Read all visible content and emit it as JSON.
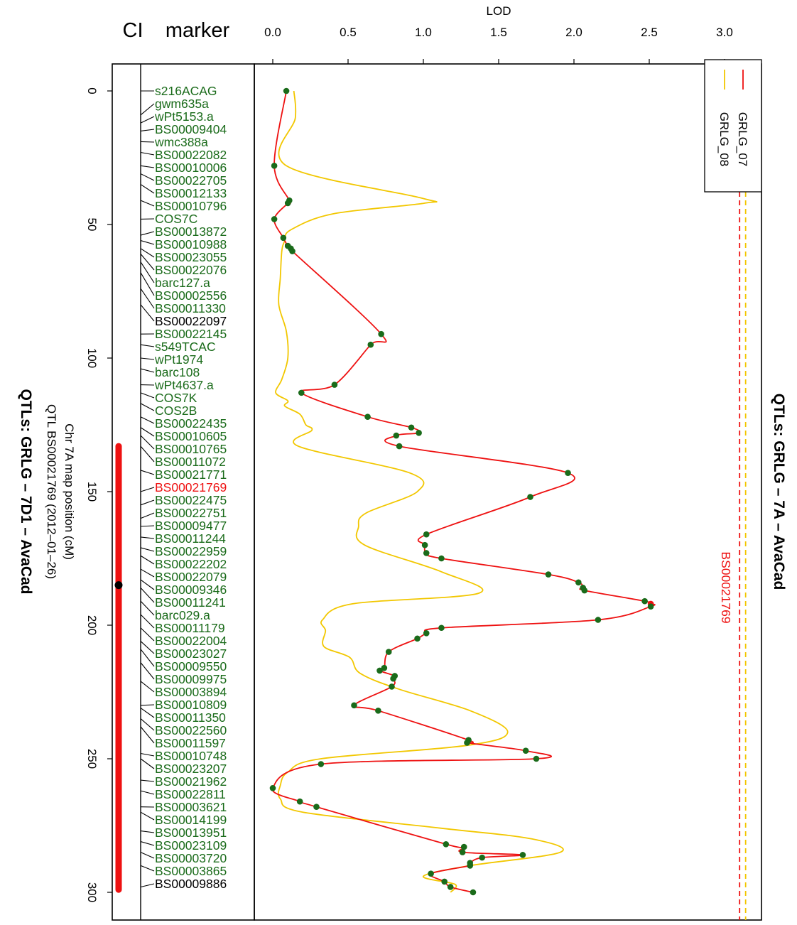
{
  "chart_data": {
    "type": "line",
    "title_right": "QTLs: GRLG – 7A – AvaCad",
    "title_left": "QTLs: GRLG – 7D1 – AvaCad",
    "subtitle_lines": [
      "Chr 7A map position (cM)",
      "QTL BS00021769 (2012–01–26)"
    ],
    "column_labels": {
      "ci": "CI",
      "marker": "marker"
    },
    "xlabel": "LOD",
    "xlim": [
      0,
      3.2
    ],
    "lod_ticks": [
      "0.0",
      "0.5",
      "1.0",
      "1.5",
      "2.0",
      "2.5",
      "3.0"
    ],
    "ylim": [
      0,
      300
    ],
    "pos_ticks": [
      "0",
      "50",
      "100",
      "150",
      "200",
      "250",
      "300"
    ],
    "ci": {
      "start": 133,
      "end": 299,
      "peak": 185
    },
    "peak_marker": "BS00021769",
    "threshold_color_red": "#ee1111",
    "threshold_color_yellow": "#f2c700",
    "thresholds": [
      {
        "series": "GRLG_07",
        "lod": 3.1,
        "color": "#ee1111"
      },
      {
        "series": "GRLG_08",
        "lod": 3.14,
        "color": "#f2c700"
      }
    ],
    "legend": [
      {
        "name": "GRLG_07",
        "color": "#ee1111"
      },
      {
        "name": "GRLG_08",
        "color": "#f2c700"
      }
    ],
    "markers": [
      {
        "name": "s216ACAG",
        "pos": 0,
        "color": "#1a6b1a"
      },
      {
        "name": "gwm635a",
        "pos": 9,
        "color": "#1a6b1a"
      },
      {
        "name": "wPt5153.a",
        "pos": 12,
        "color": "#1a6b1a"
      },
      {
        "name": "BS00009404",
        "pos": 15,
        "color": "#1a6b1a"
      },
      {
        "name": "wmc388a",
        "pos": 19,
        "color": "#1a6b1a"
      },
      {
        "name": "BS00022082",
        "pos": 23,
        "color": "#1a6b1a"
      },
      {
        "name": "BS00010006",
        "pos": 28,
        "color": "#1a6b1a"
      },
      {
        "name": "BS00022705",
        "pos": 31,
        "color": "#1a6b1a"
      },
      {
        "name": "BS00012133",
        "pos": 35,
        "color": "#1a6b1a"
      },
      {
        "name": "BS00010796",
        "pos": 41,
        "color": "#1a6b1a"
      },
      {
        "name": "COS7C",
        "pos": 48,
        "color": "#1a6b1a"
      },
      {
        "name": "BS00013872",
        "pos": 54,
        "color": "#1a6b1a"
      },
      {
        "name": "BS00010988",
        "pos": 56,
        "color": "#1a6b1a"
      },
      {
        "name": "BS00023055",
        "pos": 59,
        "color": "#1a6b1a"
      },
      {
        "name": "BS00022076",
        "pos": 61,
        "color": "#1a6b1a"
      },
      {
        "name": "barc127.a",
        "pos": 64,
        "color": "#1a6b1a"
      },
      {
        "name": "BS00002556",
        "pos": 68,
        "color": "#1a6b1a"
      },
      {
        "name": "BS00011330",
        "pos": 74,
        "color": "#1a6b1a"
      },
      {
        "name": "BS00022097",
        "pos": 80,
        "color": "#000000"
      },
      {
        "name": "BS00022145",
        "pos": 91,
        "color": "#1a6b1a"
      },
      {
        "name": "s549TCAC",
        "pos": 95,
        "color": "#1a6b1a"
      },
      {
        "name": "wPt1974",
        "pos": 100,
        "color": "#1a6b1a"
      },
      {
        "name": "barc108",
        "pos": 104,
        "color": "#1a6b1a"
      },
      {
        "name": "wPt4637.a",
        "pos": 110,
        "color": "#1a6b1a"
      },
      {
        "name": "COS7K",
        "pos": 113,
        "color": "#1a6b1a"
      },
      {
        "name": "COS2B",
        "pos": 117,
        "color": "#1a6b1a"
      },
      {
        "name": "BS00022435",
        "pos": 122,
        "color": "#1a6b1a"
      },
      {
        "name": "BS00010605",
        "pos": 126,
        "color": "#1a6b1a"
      },
      {
        "name": "BS00010765",
        "pos": 129,
        "color": "#1a6b1a"
      },
      {
        "name": "BS00011072",
        "pos": 133,
        "color": "#1a6b1a"
      },
      {
        "name": "BS00021771",
        "pos": 142,
        "color": "#1a6b1a"
      },
      {
        "name": "BS00021769",
        "pos": 150,
        "color": "#ee1111"
      },
      {
        "name": "BS00022475",
        "pos": 155,
        "color": "#1a6b1a"
      },
      {
        "name": "BS00022751",
        "pos": 160,
        "color": "#1a6b1a"
      },
      {
        "name": "BS00009477",
        "pos": 163,
        "color": "#1a6b1a"
      },
      {
        "name": "BS00011244",
        "pos": 167,
        "color": "#1a6b1a"
      },
      {
        "name": "BS00022959",
        "pos": 171,
        "color": "#1a6b1a"
      },
      {
        "name": "BS00022202",
        "pos": 174,
        "color": "#1a6b1a"
      },
      {
        "name": "BS00022079",
        "pos": 179,
        "color": "#1a6b1a"
      },
      {
        "name": "BS00009346",
        "pos": 183,
        "color": "#1a6b1a"
      },
      {
        "name": "BS00011241",
        "pos": 186,
        "color": "#1a6b1a"
      },
      {
        "name": "barc029.a",
        "pos": 191,
        "color": "#1a6b1a"
      },
      {
        "name": "BS00011179",
        "pos": 196,
        "color": "#1a6b1a"
      },
      {
        "name": "BS00022004",
        "pos": 201,
        "color": "#1a6b1a"
      },
      {
        "name": "BS00023027",
        "pos": 206,
        "color": "#1a6b1a"
      },
      {
        "name": "BS00009550",
        "pos": 209,
        "color": "#1a6b1a"
      },
      {
        "name": "BS00009975",
        "pos": 214,
        "color": "#1a6b1a"
      },
      {
        "name": "BS00003894",
        "pos": 221,
        "color": "#1a6b1a"
      },
      {
        "name": "BS00010809",
        "pos": 230,
        "color": "#1a6b1a"
      },
      {
        "name": "BS00011350",
        "pos": 231,
        "color": "#1a6b1a"
      },
      {
        "name": "BS00022560",
        "pos": 235,
        "color": "#1a6b1a"
      },
      {
        "name": "BS00011597",
        "pos": 238,
        "color": "#1a6b1a"
      },
      {
        "name": "BS00010748",
        "pos": 248,
        "color": "#1a6b1a"
      },
      {
        "name": "BS00023207",
        "pos": 250,
        "color": "#1a6b1a"
      },
      {
        "name": "BS00021962",
        "pos": 258,
        "color": "#1a6b1a"
      },
      {
        "name": "BS00022811",
        "pos": 262,
        "color": "#1a6b1a"
      },
      {
        "name": "BS00003621",
        "pos": 268,
        "color": "#1a6b1a"
      },
      {
        "name": "BS00014199",
        "pos": 270,
        "color": "#1a6b1a"
      },
      {
        "name": "BS00013951",
        "pos": 277,
        "color": "#1a6b1a"
      },
      {
        "name": "BS00023109",
        "pos": 281,
        "color": "#1a6b1a"
      },
      {
        "name": "BS00003720",
        "pos": 285,
        "color": "#1a6b1a"
      },
      {
        "name": "BS00003865",
        "pos": 290,
        "color": "#1a6b1a"
      },
      {
        "name": "BS00009886",
        "pos": 298,
        "color": "#000000"
      }
    ],
    "series": [
      {
        "name": "GRLG_07",
        "color": "#ee1111",
        "points": [
          [
            0,
            0.09
          ],
          [
            28,
            0.01
          ],
          [
            41,
            0.11
          ],
          [
            42,
            0.1
          ],
          [
            48,
            0.01
          ],
          [
            55,
            0.07
          ],
          [
            58,
            0.1
          ],
          [
            59,
            0.12
          ],
          [
            60,
            0.13
          ],
          [
            91,
            0.72
          ],
          [
            95,
            0.65
          ],
          [
            110,
            0.41
          ],
          [
            113,
            0.19
          ],
          [
            122,
            0.63
          ],
          [
            126,
            0.92
          ],
          [
            128,
            0.97
          ],
          [
            129,
            0.82
          ],
          [
            133,
            0.84
          ],
          [
            143,
            1.96
          ],
          [
            152,
            1.71
          ],
          [
            166,
            1.02
          ],
          [
            170,
            1.01
          ],
          [
            173,
            1.02
          ],
          [
            175,
            1.12
          ],
          [
            181,
            1.83
          ],
          [
            184,
            2.03
          ],
          [
            186,
            2.06
          ],
          [
            187,
            2.07
          ],
          [
            191,
            2.47
          ],
          [
            192,
            2.51
          ],
          [
            193,
            2.51
          ],
          [
            198,
            2.16
          ],
          [
            201,
            1.12
          ],
          [
            203,
            1.02
          ],
          [
            205,
            0.96
          ],
          [
            210,
            0.77
          ],
          [
            216,
            0.74
          ],
          [
            217,
            0.71
          ],
          [
            219,
            0.81
          ],
          [
            220,
            0.8
          ],
          [
            223,
            0.79
          ],
          [
            230,
            0.54
          ],
          [
            232,
            0.7
          ],
          [
            243,
            1.3
          ],
          [
            244,
            1.29
          ],
          [
            247,
            1.68
          ],
          [
            250,
            1.75
          ],
          [
            252,
            0.32
          ],
          [
            261,
            0.0
          ],
          [
            266,
            0.18
          ],
          [
            268,
            0.29
          ],
          [
            282,
            1.15
          ],
          [
            283,
            1.27
          ],
          [
            285,
            1.26
          ],
          [
            286,
            1.66
          ],
          [
            287,
            1.39
          ],
          [
            289,
            1.31
          ],
          [
            290,
            1.31
          ],
          [
            293,
            1.05
          ],
          [
            296,
            1.14
          ],
          [
            298,
            1.18
          ],
          [
            300,
            1.33
          ]
        ]
      },
      {
        "name": "GRLG_08",
        "color": "#f2c700",
        "points": [
          [
            0,
            0.14
          ],
          [
            10,
            0.15
          ],
          [
            28,
            0.09
          ],
          [
            40,
            0.98
          ],
          [
            42,
            1.01
          ],
          [
            46,
            0.4
          ],
          [
            52,
            0.12
          ],
          [
            56,
            0.08
          ],
          [
            60,
            0.06
          ],
          [
            70,
            0.05
          ],
          [
            80,
            0.04
          ],
          [
            90,
            0.09
          ],
          [
            100,
            0.1
          ],
          [
            108,
            0.06
          ],
          [
            113,
            0.02
          ],
          [
            116,
            0.1
          ],
          [
            118,
            0.08
          ],
          [
            121,
            0.18
          ],
          [
            125,
            0.22
          ],
          [
            127,
            0.26
          ],
          [
            133,
            0.17
          ],
          [
            143,
            0.91
          ],
          [
            150,
            0.96
          ],
          [
            158,
            0.62
          ],
          [
            163,
            0.57
          ],
          [
            170,
            0.61
          ],
          [
            180,
            1.12
          ],
          [
            188,
            1.37
          ],
          [
            192,
            0.53
          ],
          [
            198,
            0.33
          ],
          [
            202,
            0.35
          ],
          [
            208,
            0.34
          ],
          [
            212,
            0.51
          ],
          [
            218,
            0.58
          ],
          [
            224,
            0.84
          ],
          [
            232,
            1.31
          ],
          [
            240,
            1.56
          ],
          [
            245,
            1.29
          ],
          [
            250,
            0.32
          ],
          [
            255,
            0.1
          ],
          [
            260,
            0.05
          ],
          [
            265,
            0.05
          ],
          [
            270,
            0.2
          ],
          [
            276,
            1.12
          ],
          [
            280,
            1.72
          ],
          [
            285,
            1.91
          ],
          [
            290,
            1.31
          ],
          [
            294,
            1.0
          ],
          [
            297,
            1.21
          ],
          [
            300,
            1.18
          ]
        ]
      }
    ]
  }
}
